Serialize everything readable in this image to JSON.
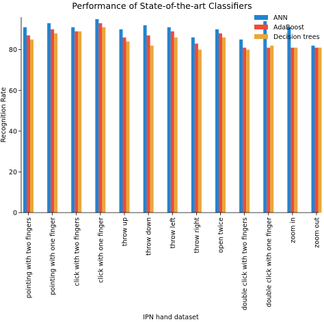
{
  "chart_data": {
    "type": "bar",
    "title": "Performance of State-of-the-art Classifiers",
    "xlabel": "IPN hand dataset",
    "ylabel": "Recognition Rate",
    "ylim": [
      0,
      96
    ],
    "yticks": [
      0,
      20,
      40,
      60,
      80
    ],
    "grid": false,
    "legend_position": "top-right",
    "categories": [
      "pointing with two fingers",
      "pointing with one finger",
      "click with two fingers",
      "click with one finger",
      "throw up",
      "throw down",
      "throw left",
      "throw right",
      "open twice",
      "double click with two fingers",
      "double click with one finger",
      "zoom in",
      "zoom out"
    ],
    "series": [
      {
        "name": "ANN",
        "color": "#1f85d1",
        "values": [
          91,
          93,
          91,
          95,
          90,
          92,
          91,
          86,
          90,
          85,
          94,
          91,
          82
        ]
      },
      {
        "name": "AdaBoost",
        "color": "#f04a3a",
        "values": [
          87,
          90,
          89,
          93,
          86,
          87,
          89,
          83,
          88,
          81,
          81,
          81,
          81
        ]
      },
      {
        "name": "Decision trees",
        "color": "#e8a838",
        "values": [
          85,
          88,
          89,
          91,
          84,
          82,
          86,
          80,
          86,
          80,
          82,
          81,
          81
        ]
      }
    ]
  }
}
